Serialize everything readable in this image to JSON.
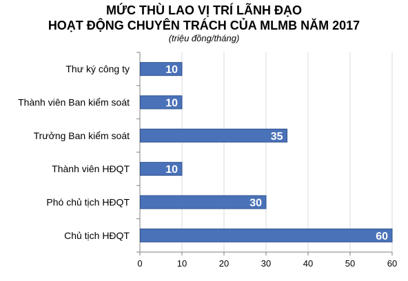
{
  "chart_data": {
    "type": "bar",
    "orientation": "horizontal",
    "title": [
      "MỨC THÙ LAO VỊ TRÍ LÃNH ĐẠO",
      "HOẠT ĐỘNG CHUYÊN TRÁCH CỦA MLMB NĂM 2017"
    ],
    "subtitle": "(triệu đồng/tháng)",
    "categories": [
      "Thư ký công ty",
      "Thành viên Ban kiểm soát",
      "Trưởng Ban kiểm soát",
      "Thành viên HĐQT",
      "Phó chủ tịch HĐQT",
      "Chủ tịch HĐQT"
    ],
    "values": [
      10,
      10,
      35,
      10,
      30,
      60
    ],
    "xlim": [
      0,
      60
    ],
    "xticks": [
      0,
      10,
      20,
      30,
      40,
      50,
      60
    ],
    "grid": true,
    "legend": "none",
    "colors": {
      "bar": "#4a72b8",
      "bar_edge": "#2f528f",
      "value_label": "#ffffff",
      "grid": "#d9d9d9",
      "axis": "#7f7f7f"
    }
  }
}
